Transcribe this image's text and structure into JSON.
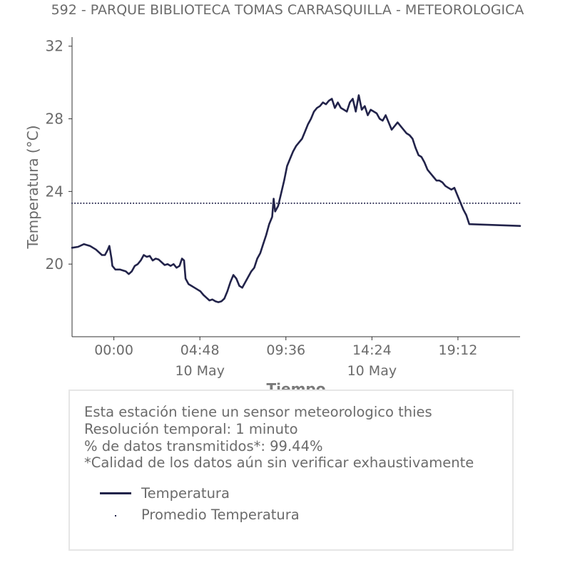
{
  "chart_data": {
    "type": "line",
    "title": "592 - PARQUE BIBLIOTECA TOMAS CARRASQUILLA - METEOROLOGICA",
    "xlabel": "Tiempo",
    "ylabel": "Temperatura (°C)",
    "ylim": [
      16.0,
      32.5
    ],
    "xlim": [
      "2024-05-09T21:40",
      "2024-05-10T22:40"
    ],
    "yticks": [
      20,
      24,
      28,
      32
    ],
    "xticks": [
      {
        "x": "2024-05-10T00:00",
        "label": "00:00",
        "sublabel": ""
      },
      {
        "x": "2024-05-10T04:48",
        "label": "04:48",
        "sublabel": "10 May"
      },
      {
        "x": "2024-05-10T09:36",
        "label": "09:36",
        "sublabel": ""
      },
      {
        "x": "2024-05-10T14:24",
        "label": "14:24",
        "sublabel": "10 May"
      },
      {
        "x": "2024-05-10T19:12",
        "label": "19:12",
        "sublabel": ""
      }
    ],
    "grid": false,
    "series": [
      {
        "name": "Temperatura",
        "style": "solid",
        "color": "#22234a",
        "points": [
          [
            "2024-05-09T21:40",
            20.9
          ],
          [
            "2024-05-09T22:00",
            20.95
          ],
          [
            "2024-05-09T22:20",
            21.1
          ],
          [
            "2024-05-09T22:40",
            21.0
          ],
          [
            "2024-05-09T23:00",
            20.8
          ],
          [
            "2024-05-09T23:20",
            20.5
          ],
          [
            "2024-05-09T23:30",
            20.5
          ],
          [
            "2024-05-09T23:40",
            20.8
          ],
          [
            "2024-05-09T23:45",
            21.0
          ],
          [
            "2024-05-09T23:52",
            20.3
          ],
          [
            "2024-05-09T23:55",
            19.9
          ],
          [
            "2024-05-10T00:05",
            19.7
          ],
          [
            "2024-05-10T00:20",
            19.7
          ],
          [
            "2024-05-10T00:40",
            19.6
          ],
          [
            "2024-05-10T00:50",
            19.45
          ],
          [
            "2024-05-10T01:00",
            19.6
          ],
          [
            "2024-05-10T01:10",
            19.9
          ],
          [
            "2024-05-10T01:20",
            20.0
          ],
          [
            "2024-05-10T01:30",
            20.2
          ],
          [
            "2024-05-10T01:40",
            20.5
          ],
          [
            "2024-05-10T01:50",
            20.4
          ],
          [
            "2024-05-10T02:00",
            20.45
          ],
          [
            "2024-05-10T02:10",
            20.2
          ],
          [
            "2024-05-10T02:20",
            20.3
          ],
          [
            "2024-05-10T02:30",
            20.25
          ],
          [
            "2024-05-10T02:40",
            20.1
          ],
          [
            "2024-05-10T02:50",
            19.95
          ],
          [
            "2024-05-10T03:00",
            20.0
          ],
          [
            "2024-05-10T03:10",
            19.9
          ],
          [
            "2024-05-10T03:20",
            20.0
          ],
          [
            "2024-05-10T03:30",
            19.8
          ],
          [
            "2024-05-10T03:40",
            19.9
          ],
          [
            "2024-05-10T03:48",
            20.3
          ],
          [
            "2024-05-10T03:55",
            20.2
          ],
          [
            "2024-05-10T04:00",
            19.2
          ],
          [
            "2024-05-10T04:10",
            18.9
          ],
          [
            "2024-05-10T04:20",
            18.8
          ],
          [
            "2024-05-10T04:30",
            18.7
          ],
          [
            "2024-05-10T04:40",
            18.6
          ],
          [
            "2024-05-10T04:50",
            18.5
          ],
          [
            "2024-05-10T05:00",
            18.3
          ],
          [
            "2024-05-10T05:10",
            18.15
          ],
          [
            "2024-05-10T05:20",
            18.0
          ],
          [
            "2024-05-10T05:30",
            18.05
          ],
          [
            "2024-05-10T05:40",
            17.95
          ],
          [
            "2024-05-10T05:50",
            17.9
          ],
          [
            "2024-05-10T06:00",
            17.95
          ],
          [
            "2024-05-10T06:10",
            18.1
          ],
          [
            "2024-05-10T06:20",
            18.5
          ],
          [
            "2024-05-10T06:30",
            19.0
          ],
          [
            "2024-05-10T06:40",
            19.4
          ],
          [
            "2024-05-10T06:50",
            19.2
          ],
          [
            "2024-05-10T07:00",
            18.8
          ],
          [
            "2024-05-10T07:10",
            18.7
          ],
          [
            "2024-05-10T07:20",
            19.0
          ],
          [
            "2024-05-10T07:30",
            19.3
          ],
          [
            "2024-05-10T07:40",
            19.6
          ],
          [
            "2024-05-10T07:50",
            19.8
          ],
          [
            "2024-05-10T08:00",
            20.3
          ],
          [
            "2024-05-10T08:10",
            20.6
          ],
          [
            "2024-05-10T08:20",
            21.1
          ],
          [
            "2024-05-10T08:30",
            21.6
          ],
          [
            "2024-05-10T08:40",
            22.2
          ],
          [
            "2024-05-10T08:50",
            22.6
          ],
          [
            "2024-05-10T08:55",
            23.6
          ],
          [
            "2024-05-10T09:00",
            22.9
          ],
          [
            "2024-05-10T09:10",
            23.2
          ],
          [
            "2024-05-10T09:20",
            23.9
          ],
          [
            "2024-05-10T09:30",
            24.6
          ],
          [
            "2024-05-10T09:40",
            25.4
          ],
          [
            "2024-05-10T09:50",
            25.8
          ],
          [
            "2024-05-10T10:00",
            26.2
          ],
          [
            "2024-05-10T10:10",
            26.5
          ],
          [
            "2024-05-10T10:20",
            26.7
          ],
          [
            "2024-05-10T10:30",
            26.9
          ],
          [
            "2024-05-10T10:40",
            27.3
          ],
          [
            "2024-05-10T10:50",
            27.7
          ],
          [
            "2024-05-10T11:00",
            28.0
          ],
          [
            "2024-05-10T11:10",
            28.4
          ],
          [
            "2024-05-10T11:20",
            28.6
          ],
          [
            "2024-05-10T11:30",
            28.7
          ],
          [
            "2024-05-10T11:40",
            28.9
          ],
          [
            "2024-05-10T11:50",
            28.8
          ],
          [
            "2024-05-10T12:00",
            29.0
          ],
          [
            "2024-05-10T12:10",
            29.1
          ],
          [
            "2024-05-10T12:20",
            28.6
          ],
          [
            "2024-05-10T12:30",
            28.9
          ],
          [
            "2024-05-10T12:40",
            28.6
          ],
          [
            "2024-05-10T12:50",
            28.5
          ],
          [
            "2024-05-10T13:00",
            28.4
          ],
          [
            "2024-05-10T13:10",
            28.9
          ],
          [
            "2024-05-10T13:20",
            29.1
          ],
          [
            "2024-05-10T13:30",
            28.4
          ],
          [
            "2024-05-10T13:40",
            29.3
          ],
          [
            "2024-05-10T13:50",
            28.5
          ],
          [
            "2024-05-10T14:00",
            28.7
          ],
          [
            "2024-05-10T14:10",
            28.2
          ],
          [
            "2024-05-10T14:20",
            28.5
          ],
          [
            "2024-05-10T14:30",
            28.4
          ],
          [
            "2024-05-10T14:40",
            28.3
          ],
          [
            "2024-05-10T14:50",
            28.0
          ],
          [
            "2024-05-10T15:00",
            27.9
          ],
          [
            "2024-05-10T15:10",
            28.2
          ],
          [
            "2024-05-10T15:20",
            27.8
          ],
          [
            "2024-05-10T15:30",
            27.4
          ],
          [
            "2024-05-10T15:40",
            27.6
          ],
          [
            "2024-05-10T15:50",
            27.8
          ],
          [
            "2024-05-10T16:00",
            27.6
          ],
          [
            "2024-05-10T16:10",
            27.4
          ],
          [
            "2024-05-10T16:20",
            27.2
          ],
          [
            "2024-05-10T16:30",
            27.1
          ],
          [
            "2024-05-10T16:40",
            26.9
          ],
          [
            "2024-05-10T16:50",
            26.4
          ],
          [
            "2024-05-10T17:00",
            26.0
          ],
          [
            "2024-05-10T17:10",
            25.9
          ],
          [
            "2024-05-10T17:20",
            25.6
          ],
          [
            "2024-05-10T17:30",
            25.2
          ],
          [
            "2024-05-10T17:40",
            25.0
          ],
          [
            "2024-05-10T17:50",
            24.8
          ],
          [
            "2024-05-10T18:00",
            24.6
          ],
          [
            "2024-05-10T18:10",
            24.6
          ],
          [
            "2024-05-10T18:20",
            24.5
          ],
          [
            "2024-05-10T18:30",
            24.3
          ],
          [
            "2024-05-10T18:40",
            24.2
          ],
          [
            "2024-05-10T18:50",
            24.1
          ],
          [
            "2024-05-10T19:00",
            24.2
          ],
          [
            "2024-05-10T19:10",
            23.8
          ],
          [
            "2024-05-10T19:20",
            23.4
          ],
          [
            "2024-05-10T19:30",
            23.0
          ],
          [
            "2024-05-10T19:40",
            22.7
          ],
          [
            "2024-05-10T19:50",
            22.2
          ],
          [
            "2024-05-10T22:40",
            22.1
          ]
        ]
      },
      {
        "name": "Promedio Temperatura",
        "style": "dotted",
        "color": "#22234a",
        "points": [
          [
            "2024-05-09T21:40",
            23.35
          ],
          [
            "2024-05-10T22:40",
            23.35
          ]
        ]
      }
    ]
  },
  "info": {
    "line1": "Esta estación tiene un sensor meteorologico thies",
    "line2": "Resolución temporal: 1 minuto",
    "line3": "% de datos transmitidos*: 99.44%",
    "line4": "*Calidad de los datos aún sin verificar exhaustivamente"
  },
  "legend": {
    "line_label": "Temperatura",
    "dot_label": "Promedio Temperatura"
  }
}
